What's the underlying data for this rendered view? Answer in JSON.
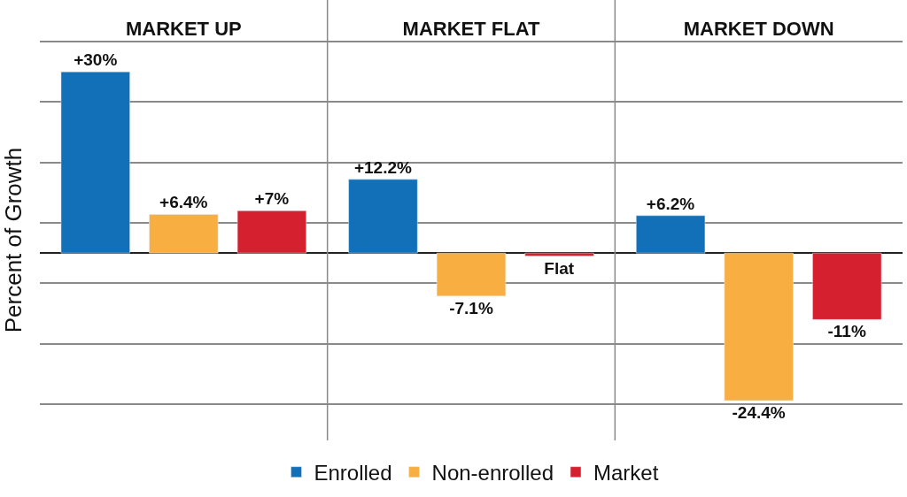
{
  "chart_data": {
    "type": "bar",
    "ylabel": "Percent of Growth",
    "categories": [
      "MARKET UP",
      "MARKET FLAT",
      "MARKET DOWN"
    ],
    "series": [
      {
        "name": "Enrolled",
        "color": "#1170b8",
        "values": [
          30,
          12.2,
          6.2
        ],
        "value_labels": [
          "+30%",
          "+12.2%",
          "+6.2%"
        ]
      },
      {
        "name": "Non-enrolled",
        "color": "#f9ae41",
        "values": [
          6.4,
          -7.1,
          -24.4
        ],
        "value_labels": [
          "+6.4%",
          "-7.1%",
          "-24.4%"
        ]
      },
      {
        "name": "Market",
        "color": "#d4202f",
        "values": [
          7,
          -0.5,
          -11
        ],
        "value_labels": [
          "+7%",
          "Flat",
          "-11%"
        ]
      }
    ],
    "yticks": [
      {
        "value": -25,
        "label": null
      },
      {
        "value": -15,
        "label": null
      },
      {
        "value": -5,
        "label": null
      },
      {
        "value": 0,
        "label": null
      },
      {
        "value": 5,
        "label": null
      },
      {
        "value": 15,
        "label": null
      },
      {
        "value": 25,
        "label": null
      },
      {
        "value": 35,
        "label": null
      }
    ],
    "grid": true,
    "legend": "bottom"
  }
}
